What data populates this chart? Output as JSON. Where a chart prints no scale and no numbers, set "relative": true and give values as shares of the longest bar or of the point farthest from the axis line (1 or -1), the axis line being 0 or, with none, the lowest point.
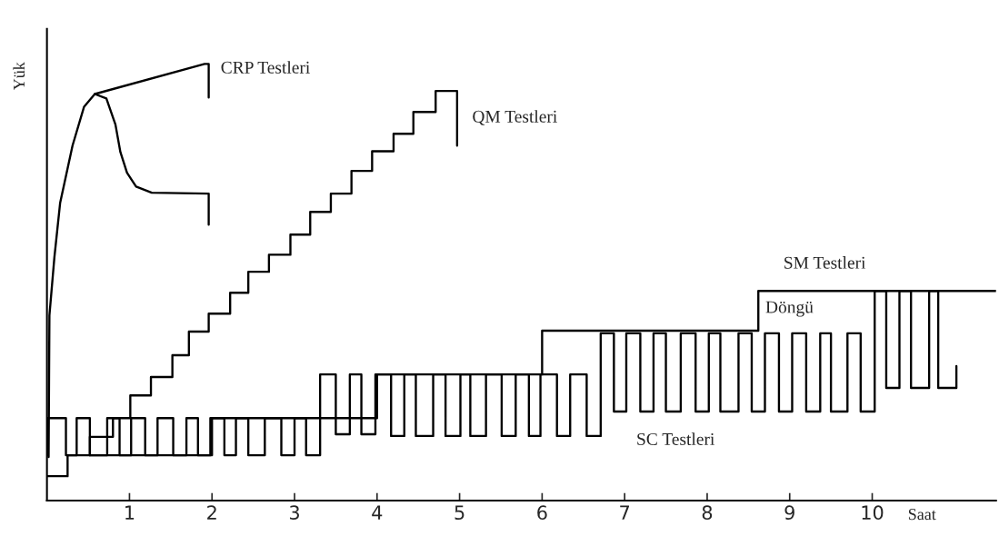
{
  "chart_data": {
    "type": "line",
    "relative": true,
    "xlabel": "Saat",
    "ylabel": "Yük",
    "xlim": [
      0,
      11.5
    ],
    "xticks": [
      1,
      2,
      3,
      4,
      5,
      6,
      7,
      8,
      9,
      10
    ],
    "series": [
      {
        "color": "#000000",
        "x": [
          0.02,
          0.03,
          0.09,
          0.16,
          0.31,
          0.45,
          0.58,
          0.72,
          0.83,
          0.89,
          0.97,
          1.08,
          1.27,
          1.96,
          1.96
        ],
        "values": [
          0.1,
          0.424,
          0.557,
          0.682,
          0.813,
          0.902,
          0.931,
          0.921,
          0.861,
          0.798,
          0.751,
          0.719,
          0.705,
          0.703,
          0.632
        ]
      },
      {
        "color": "#000000",
        "x": [
          0.58,
          1.91,
          1.96,
          1.96
        ],
        "values": [
          0.931,
          1.0,
          1.0,
          0.923
        ]
      },
      {
        "color": "#000000",
        "x": [
          0.52,
          0.52,
          0.8,
          0.8,
          1.01,
          1.01,
          1.26,
          1.26,
          1.52,
          1.52,
          1.72,
          1.72,
          1.96,
          1.96,
          2.22,
          2.22,
          2.44,
          2.44,
          2.69,
          2.69,
          2.95,
          2.95,
          3.19,
          3.19,
          3.44,
          3.44,
          3.69,
          3.69,
          3.94,
          3.94,
          4.2,
          4.2,
          4.44,
          4.44,
          4.71,
          4.71,
          4.97,
          4.97
        ],
        "values": [
          0.104,
          0.146,
          0.146,
          0.189,
          0.189,
          0.241,
          0.241,
          0.283,
          0.283,
          0.333,
          0.333,
          0.387,
          0.387,
          0.428,
          0.428,
          0.476,
          0.476,
          0.524,
          0.524,
          0.563,
          0.563,
          0.609,
          0.609,
          0.661,
          0.661,
          0.703,
          0.703,
          0.755,
          0.755,
          0.8,
          0.8,
          0.84,
          0.84,
          0.89,
          0.89,
          0.938,
          0.938,
          0.813
        ]
      },
      {
        "color": "#000000",
        "x": [
          0,
          0.25,
          0.25,
          2,
          2,
          4,
          4,
          6,
          6,
          8.62,
          8.62,
          11.5
        ],
        "values": [
          0.056,
          0.056,
          0.104,
          0.104,
          0.189,
          0.189,
          0.289,
          0.289,
          0.389,
          0.389,
          0.48,
          0.48
        ]
      },
      {
        "color": "#000000",
        "x": [
          0.01,
          0.01,
          0.23,
          0.23,
          0.36,
          0.36,
          0.52,
          0.52,
          0.73,
          0.73,
          0.88,
          0.88,
          1.02,
          1.02,
          1.19,
          1.19,
          1.34,
          1.34,
          1.53,
          1.53,
          1.69,
          1.69,
          1.83,
          1.83,
          1.98,
          1.98,
          2.15,
          2.15,
          2.29,
          2.29,
          2.44,
          2.44,
          2.64,
          2.64,
          2.84,
          2.84,
          3.0,
          3.0,
          3.14,
          3.14,
          3.31,
          3.31,
          3.5,
          3.5,
          3.67,
          3.67,
          3.81,
          3.81,
          3.98,
          3.98,
          4.17,
          4.17,
          4.33,
          4.33,
          4.47,
          4.47,
          4.68,
          4.68,
          4.83,
          4.83,
          5.01,
          5.01,
          5.13,
          5.13,
          5.32,
          5.32,
          5.51,
          5.51,
          5.68,
          5.68,
          5.84,
          5.84,
          5.98,
          5.98,
          6.18,
          6.18,
          6.34,
          6.34,
          6.54,
          6.54,
          6.71,
          6.71,
          6.87,
          6.87,
          7.02,
          7.02,
          7.19,
          7.19,
          7.35,
          7.35,
          7.5,
          7.5,
          7.68,
          7.68,
          7.86,
          7.86,
          8.02,
          8.02,
          8.16,
          8.16,
          8.38,
          8.38,
          8.54,
          8.54,
          8.7,
          8.7,
          8.87,
          8.87,
          9.03,
          9.03,
          9.2,
          9.2,
          9.37,
          9.37,
          9.5,
          9.5,
          9.7,
          9.7,
          9.86,
          9.86,
          10.03,
          10.03,
          10.17,
          10.17,
          10.33,
          10.33,
          10.47,
          10.47,
          10.69,
          10.69,
          10.8,
          10.8,
          11.02,
          11.02
        ],
        "values": [
          0.104,
          0.189,
          0.189,
          0.104,
          0.104,
          0.189,
          0.189,
          0.104,
          0.104,
          0.189,
          0.189,
          0.104,
          0.104,
          0.189,
          0.189,
          0.104,
          0.104,
          0.189,
          0.189,
          0.104,
          0.104,
          0.189,
          0.189,
          0.104,
          0.104,
          0.189,
          0.189,
          0.104,
          0.104,
          0.189,
          0.189,
          0.104,
          0.104,
          0.189,
          0.189,
          0.104,
          0.104,
          0.189,
          0.189,
          0.104,
          0.104,
          0.289,
          0.289,
          0.152,
          0.152,
          0.289,
          0.289,
          0.152,
          0.152,
          0.289,
          0.289,
          0.148,
          0.148,
          0.289,
          0.289,
          0.148,
          0.148,
          0.289,
          0.289,
          0.148,
          0.148,
          0.289,
          0.289,
          0.148,
          0.148,
          0.289,
          0.289,
          0.148,
          0.148,
          0.289,
          0.289,
          0.148,
          0.148,
          0.289,
          0.289,
          0.148,
          0.148,
          0.289,
          0.289,
          0.148,
          0.148,
          0.383,
          0.383,
          0.204,
          0.204,
          0.383,
          0.383,
          0.204,
          0.204,
          0.383,
          0.383,
          0.204,
          0.204,
          0.383,
          0.383,
          0.204,
          0.204,
          0.383,
          0.383,
          0.204,
          0.204,
          0.383,
          0.383,
          0.204,
          0.204,
          0.383,
          0.383,
          0.204,
          0.204,
          0.383,
          0.383,
          0.204,
          0.204,
          0.383,
          0.383,
          0.204,
          0.204,
          0.383,
          0.383,
          0.204,
          0.204,
          0.48,
          0.48,
          0.258,
          0.258,
          0.48,
          0.48,
          0.258,
          0.258,
          0.48,
          0.48,
          0.258,
          0.258,
          0.308
        ]
      }
    ],
    "annotations": [
      "CRP Testleri",
      "QM Testleri",
      "SM Testleri",
      "Döngü",
      "SC Testleri"
    ]
  }
}
